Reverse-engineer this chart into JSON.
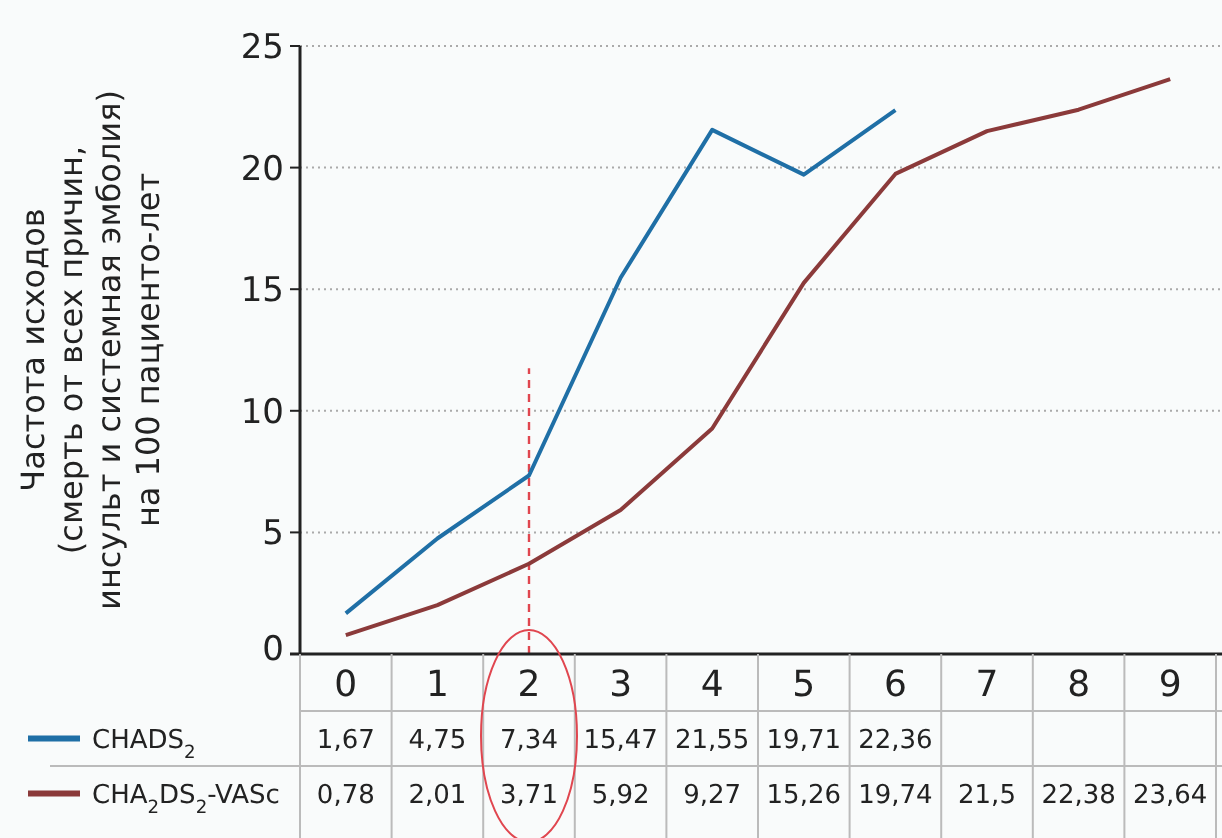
{
  "chart_data": {
    "type": "line",
    "ylabel": "Частота исходов\n(смерть от всех причин,\nинсульт и системная эмболия)\nна 100 пациенто-лет",
    "categories": [
      "0",
      "1",
      "2",
      "3",
      "4",
      "5",
      "6",
      "7",
      "8",
      "9"
    ],
    "series": [
      {
        "name": "CHADS$_{2}$",
        "color": "#1f6fa6",
        "values": [
          1.67,
          4.75,
          7.34,
          15.47,
          21.55,
          19.71,
          22.36,
          null,
          null,
          null
        ],
        "value_labels": [
          "1,67",
          "4,75",
          "7,34",
          "15,47",
          "21,55",
          "19,71",
          "22,36",
          null,
          null,
          null
        ]
      },
      {
        "name": "CHA$_{2}$DS$_{2}$-VASc",
        "color": "#8b3a3a",
        "values": [
          0.78,
          2.01,
          3.71,
          5.92,
          9.27,
          15.26,
          19.74,
          21.5,
          22.38,
          23.64
        ],
        "value_labels": [
          "0,78",
          "2,01",
          "3,71",
          "5,92",
          "9,27",
          "15,26",
          "19,74",
          "21,5",
          "22,38",
          "23,64"
        ]
      }
    ],
    "ylim": [
      0,
      25
    ],
    "yticks": [
      0,
      5,
      10,
      15,
      20,
      25
    ],
    "grid": "y",
    "legend": "bottom",
    "marker": "none",
    "line_style": "solid",
    "ref_lines": [
      {
        "axis": "x",
        "value": "2",
        "color": "#e0464f",
        "line_style": "dashed"
      }
    ]
  }
}
